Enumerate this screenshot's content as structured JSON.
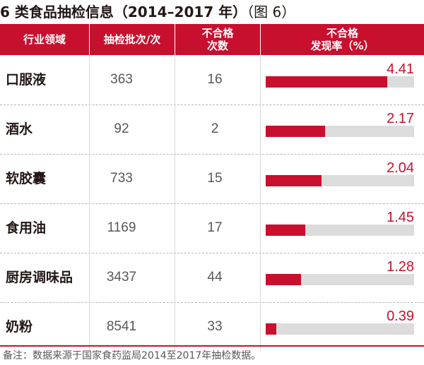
{
  "title": {
    "main": "6 类食品抽检信息（2014–2017 年）",
    "figure_ref": "（图 6）"
  },
  "chart_data": {
    "type": "table",
    "title": "6 类食品抽检信息（2014–2017 年）",
    "columns": [
      "行业领域",
      "抽检批次/次",
      "不合格\n次数",
      "不合格\n发现率（%）"
    ],
    "rows": [
      {
        "category": "口服液",
        "batches": "363",
        "failures": "16",
        "rate": 4.41
      },
      {
        "category": "酒水",
        "batches": "92",
        "failures": "2",
        "rate": 2.17
      },
      {
        "category": "软胶囊",
        "batches": "733",
        "failures": "15",
        "rate": 2.04
      },
      {
        "category": "食用油",
        "batches": "1169",
        "failures": "17",
        "rate": 1.45
      },
      {
        "category": "厨房调味品",
        "batches": "3437",
        "failures": "44",
        "rate": 1.28
      },
      {
        "category": "奶粉",
        "batches": "8541",
        "failures": "33",
        "rate": 0.39
      }
    ],
    "rate_bar_max": 5.4
  },
  "header": {
    "col1": "行业领域",
    "col2": "抽检批次/次",
    "col3_line1": "不合格",
    "col3_line2": "次数",
    "col4_line1": "不合格",
    "col4_line2": "发现率（%）"
  },
  "colors": {
    "accent": "#c8102e",
    "track": "#dcdcdc"
  },
  "note": "备注：数据来源于国家食药监局2014至2017年抽检数据。"
}
